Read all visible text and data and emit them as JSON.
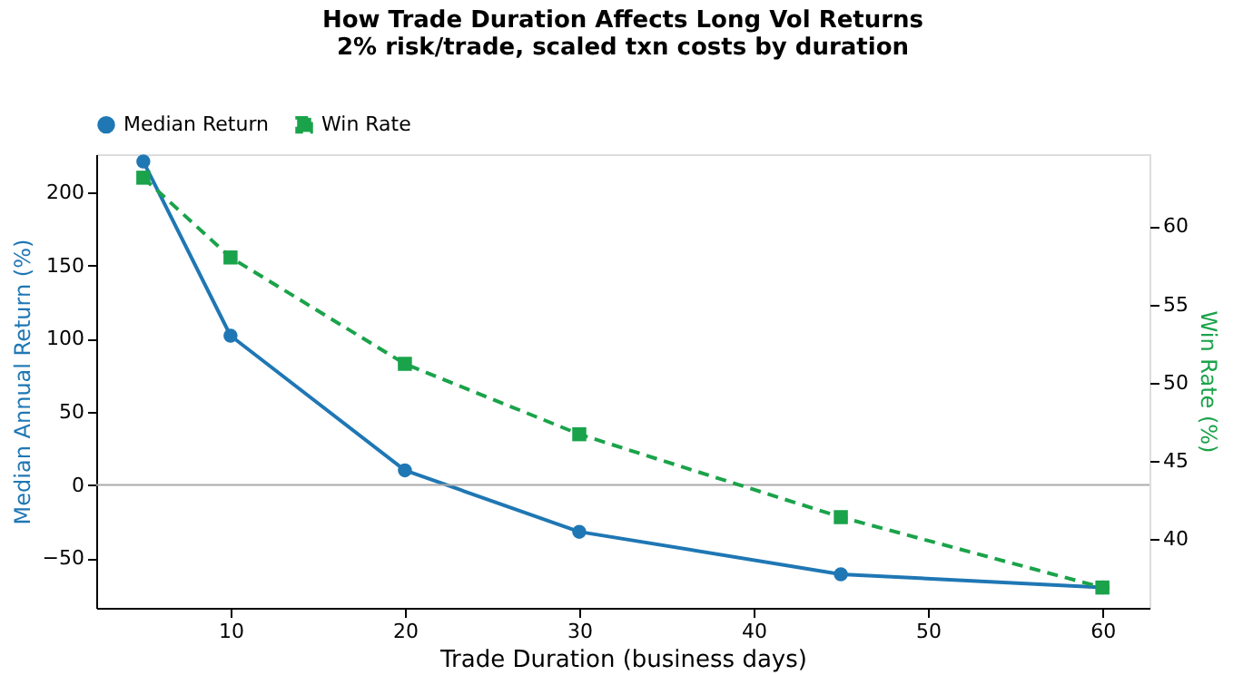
{
  "chart_data": {
    "type": "line",
    "title": "How Trade Duration Affects Long Vol Returns",
    "subtitle": "2% risk/trade, scaled txn costs by duration",
    "xlabel": "Trade Duration (business days)",
    "ylabel": "Median Annual Return (%)",
    "y2label": "Win Rate (%)",
    "x": [
      5,
      10,
      20,
      30,
      45,
      60
    ],
    "series": [
      {
        "name": "Median Return",
        "color": "#1f77b4",
        "values": [
          221,
          102,
          10,
          -32,
          -61,
          -70
        ],
        "marker": "circle",
        "line_style": "solid"
      },
      {
        "name": "Win Rate",
        "color": "#1aa34a",
        "values": [
          63.1,
          58.0,
          51.2,
          46.7,
          41.4,
          36.9
        ],
        "axis": "y2",
        "marker": "square",
        "line_style": "dashed"
      }
    ],
    "xlim": [
      2.3,
      62.7
    ],
    "xticks": [
      10,
      20,
      30,
      40,
      50,
      60
    ],
    "ylim": [
      -84,
      226
    ],
    "yticks": [
      -50,
      0,
      50,
      100,
      150,
      200
    ],
    "y2lim": [
      35.6,
      64.6
    ],
    "y2ticks": [
      40,
      45,
      50,
      55,
      60
    ],
    "ref_lines": [
      {
        "axis": "y",
        "value": 0,
        "color": "#aaaaaa"
      }
    ],
    "grid": false,
    "legend": "top left"
  }
}
